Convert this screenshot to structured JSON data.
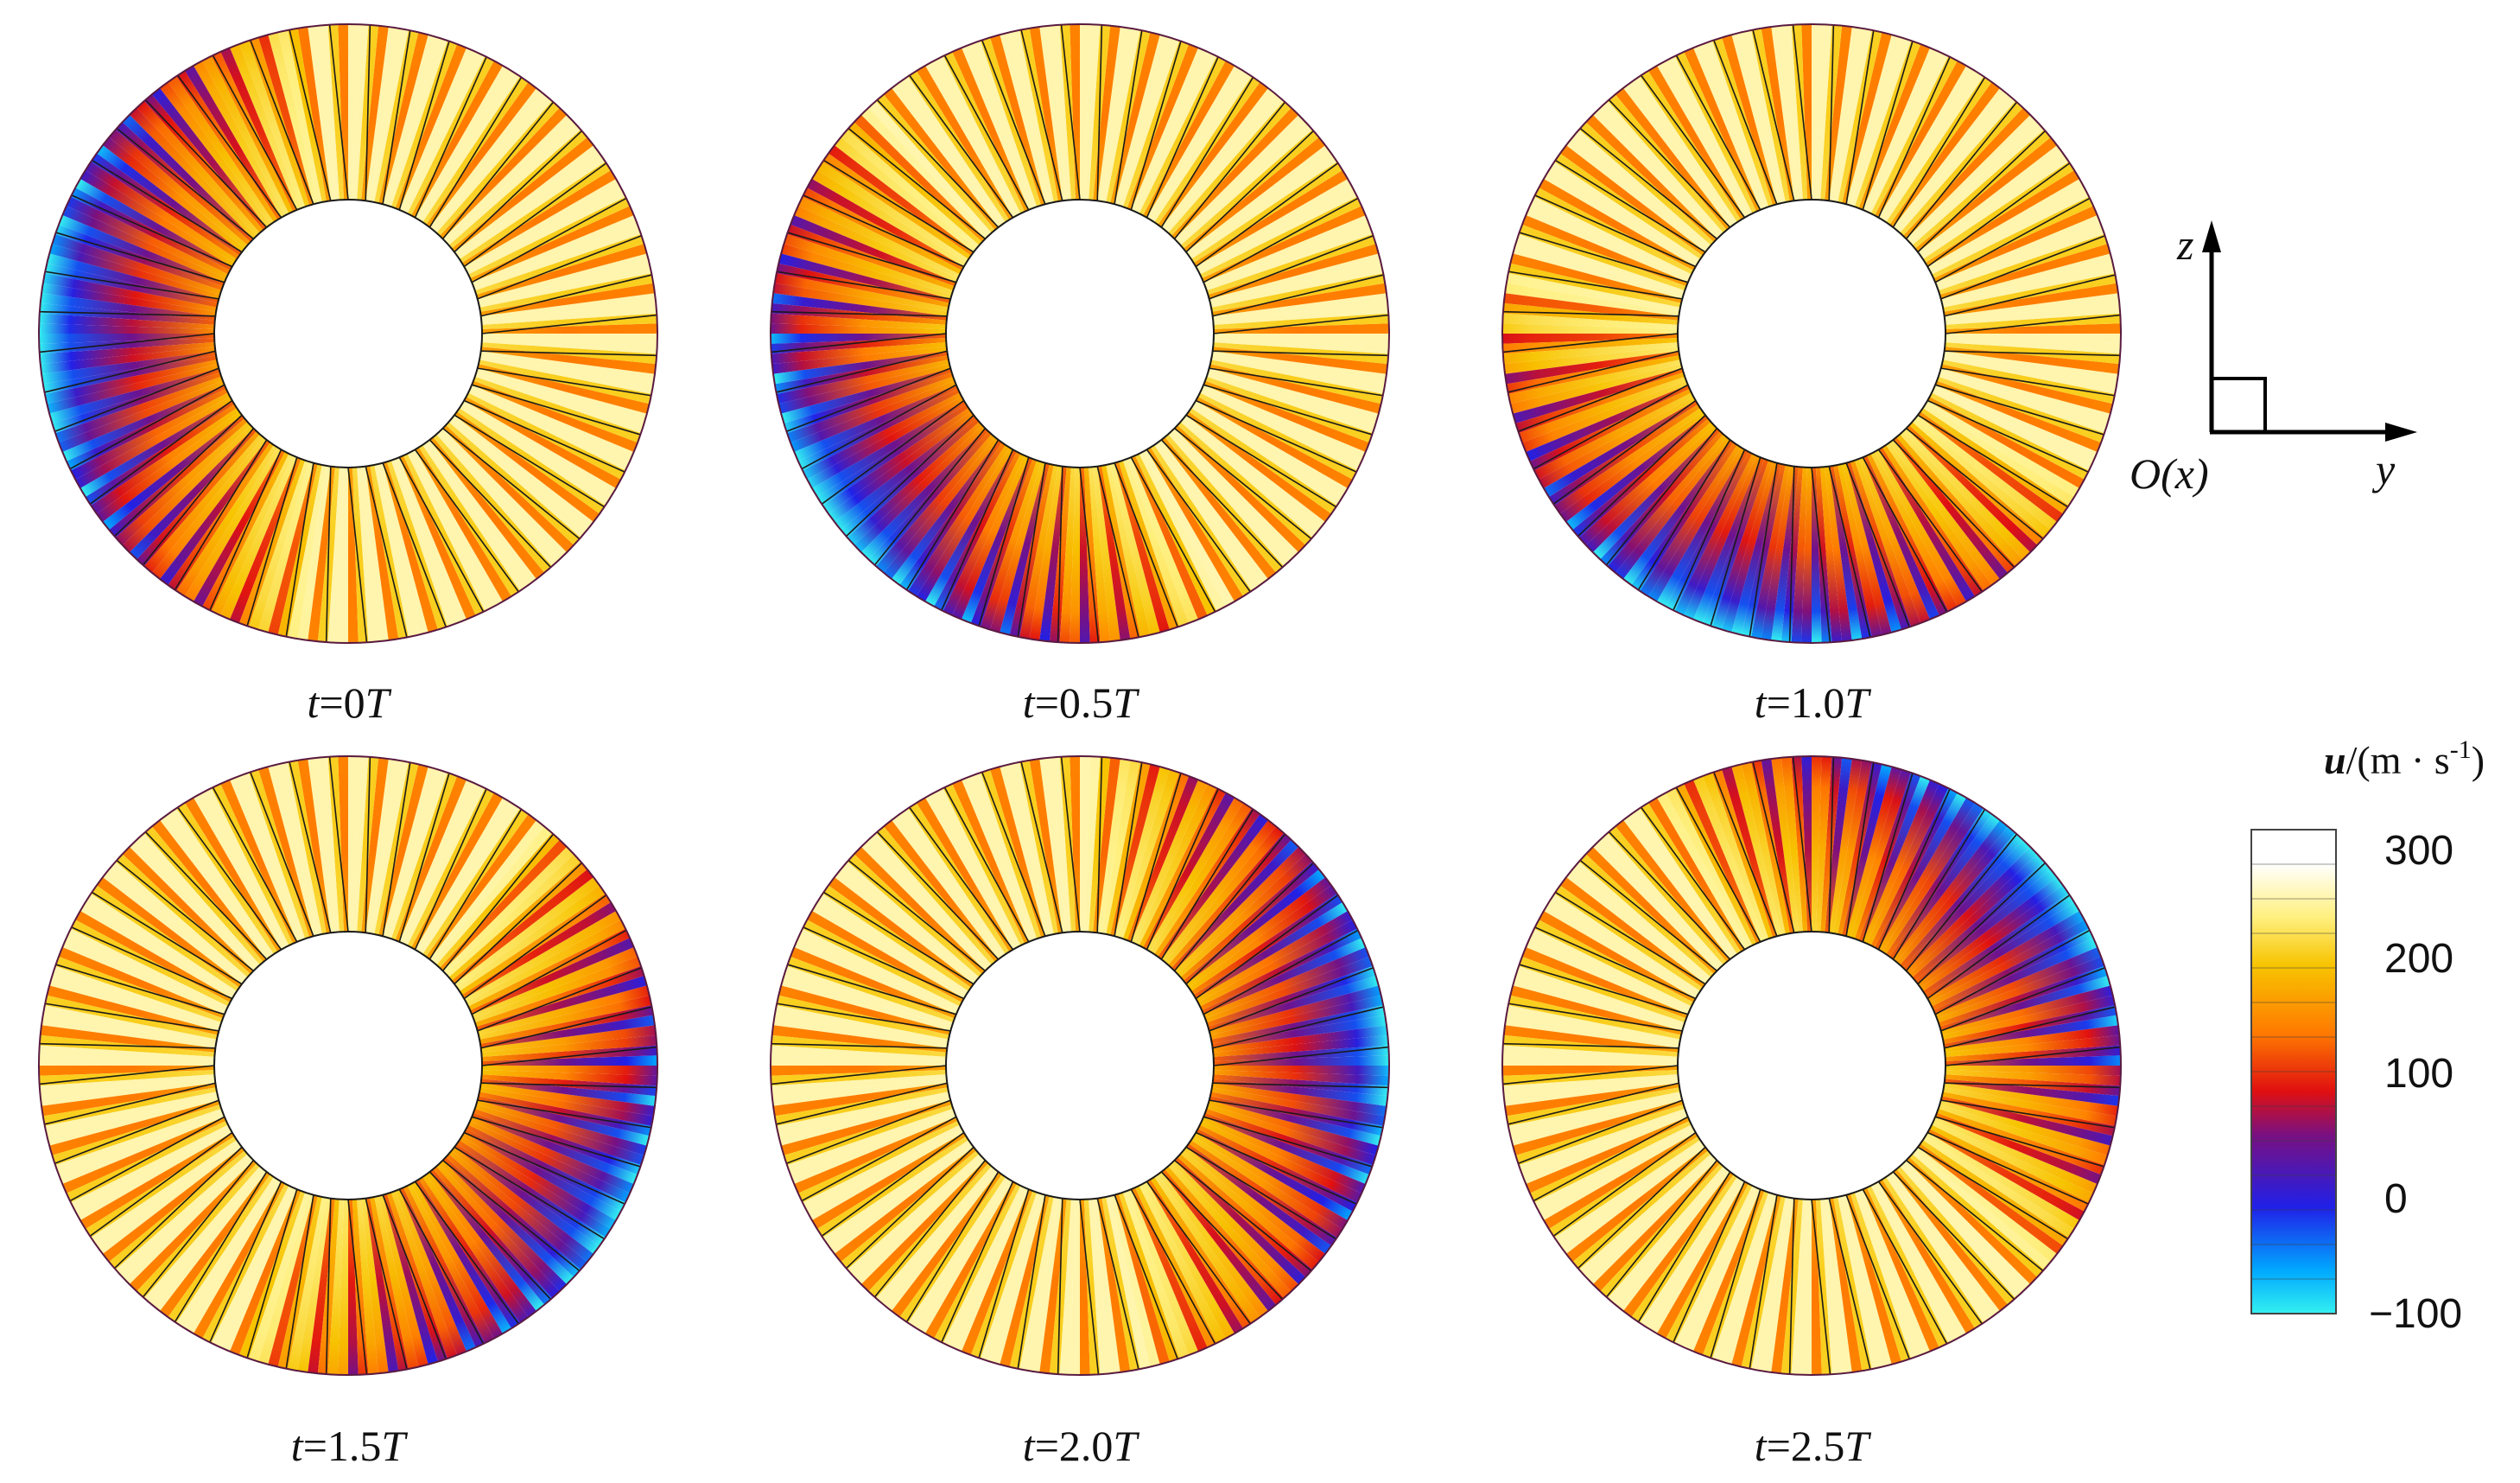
{
  "panels": [
    {
      "label_var": "t",
      "label_eq": "=",
      "label_val": "0",
      "label_unit": "T",
      "phase_deg": 180,
      "intensity": 1.0
    },
    {
      "label_var": "t",
      "label_eq": "=",
      "label_val": "0.5",
      "label_unit": "T",
      "phase_deg": 215,
      "intensity": 0.95
    },
    {
      "label_var": "t",
      "label_eq": "=",
      "label_val": "1.0",
      "label_unit": "T",
      "phase_deg": 250,
      "intensity": 0.9
    },
    {
      "label_var": "t",
      "label_eq": "=",
      "label_val": "1.5",
      "label_unit": "T",
      "phase_deg": 330,
      "intensity": 0.85
    },
    {
      "label_var": "t",
      "label_eq": "=",
      "label_val": "2.0",
      "label_unit": "T",
      "phase_deg": 5,
      "intensity": 0.9
    },
    {
      "label_var": "t",
      "label_eq": "=",
      "label_val": "2.5",
      "label_unit": "T",
      "phase_deg": 40,
      "intensity": 0.95
    }
  ],
  "blade_count": 48,
  "axes": {
    "vertical_label": "z",
    "horizontal_label": "y",
    "origin_label": "O(x)"
  },
  "legend": {
    "title_var": "u",
    "title_unit": "/(m · s",
    "title_exp": "-1",
    "title_close": ")",
    "ticks": [
      "300",
      "200",
      "100",
      "0",
      "−100"
    ],
    "tick_values": [
      300,
      200,
      100,
      0,
      -100
    ],
    "range": [
      -100,
      300
    ],
    "colors": [
      "#33f0f0",
      "#00a8ff",
      "#2020e8",
      "#7a1080",
      "#e01010",
      "#ff7a00",
      "#f7c400",
      "#fff080",
      "#ffffff"
    ]
  }
}
